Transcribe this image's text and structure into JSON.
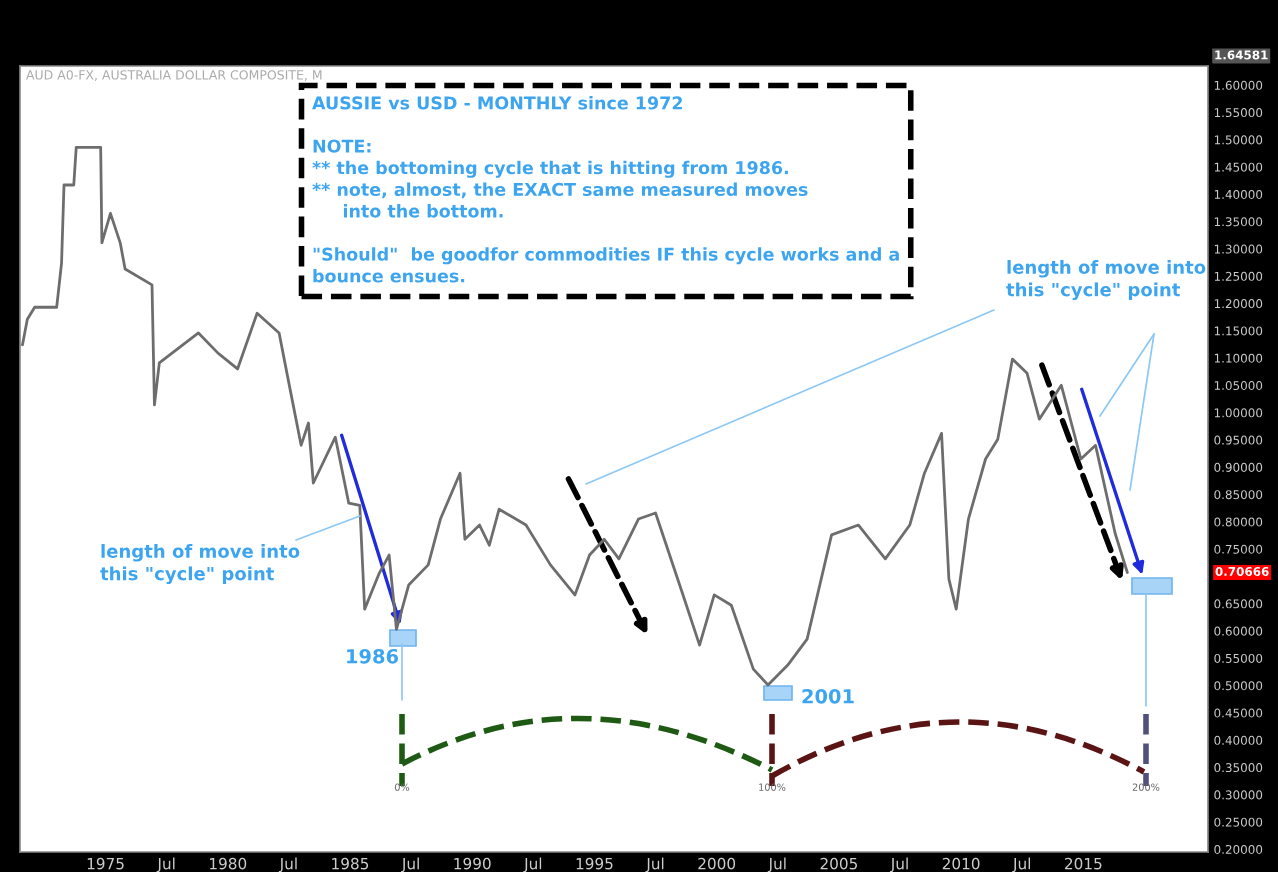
{
  "chart_data": {
    "type": "line",
    "title": "AUD A0-FX, AUSTRALIA DOLLAR COMPOSITE, M",
    "x": [
      1971.6,
      1971.8,
      1972.1,
      1973.0,
      1973.2,
      1973.3,
      1973.7,
      1973.8,
      1974.8,
      1974.85,
      1975.2,
      1975.6,
      1975.8,
      1976.9,
      1977.0,
      1977.2,
      1978.8,
      1979.6,
      1980.4,
      1981.2,
      1982.1,
      1982.5,
      1983.0,
      1983.3,
      1983.5,
      1984.4,
      1984.95,
      1985.4,
      1985.6,
      1986.2,
      1986.6,
      1986.9,
      1987.4,
      1988.2,
      1988.7,
      1989.5,
      1989.7,
      1990.3,
      1990.7,
      1991.1,
      1992.2,
      1993.2,
      1994.2,
      1994.8,
      1995.4,
      1996.0,
      1996.8,
      1997.5,
      1998.6,
      1999.3,
      1999.9,
      2000.6,
      2001.5,
      2002.1,
      2002.9,
      2003.7,
      2004.7,
      2005.8,
      2006.9,
      2007.9,
      2008.5,
      2009.2,
      2009.5,
      2009.8,
      2010.3,
      2011.0,
      2011.5,
      2012.1,
      2012.7,
      2013.2,
      2014.1,
      2014.9,
      2015.5,
      2016.3,
      2016.8
    ],
    "series": [
      {
        "color": "#6d6d6d",
        "values": [
          1.124,
          1.171,
          1.193,
          1.193,
          1.274,
          1.417,
          1.417,
          1.486,
          1.486,
          1.311,
          1.365,
          1.311,
          1.263,
          1.234,
          1.014,
          1.091,
          1.146,
          1.109,
          1.08,
          1.182,
          1.146,
          1.054,
          0.94,
          0.981,
          0.871,
          0.955,
          0.834,
          0.83,
          0.64,
          0.706,
          0.739,
          0.603,
          0.684,
          0.721,
          0.805,
          0.889,
          0.768,
          0.794,
          0.757,
          0.823,
          0.794,
          0.721,
          0.666,
          0.739,
          0.768,
          0.732,
          0.805,
          0.816,
          0.669,
          0.574,
          0.666,
          0.647,
          0.53,
          0.501,
          0.537,
          0.585,
          0.776,
          0.794,
          0.732,
          0.794,
          0.889,
          0.962,
          0.695,
          0.64,
          0.805,
          0.915,
          0.951,
          1.098,
          1.072,
          0.988,
          1.05,
          0.915,
          0.94,
          0.779,
          0.707
        ]
      }
    ],
    "xlim": [
      1971.5,
      2020.1
    ],
    "xticks": [
      1975,
      {
        "value": 1977.5,
        "label": "Jul"
      },
      1980,
      {
        "value": 1982.5,
        "label": "Jul"
      },
      1985,
      {
        "value": 1987.5,
        "label": "Jul"
      },
      1990,
      {
        "value": 1992.5,
        "label": "Jul"
      },
      1995,
      {
        "value": 1997.5,
        "label": "Jul"
      },
      2000,
      {
        "value": 2002.5,
        "label": "Jul"
      },
      2005,
      {
        "value": 2007.5,
        "label": "Jul"
      },
      2010,
      {
        "value": 2012.5,
        "label": "Jul"
      },
      2015
    ],
    "ylim": [
      0.195,
      1.635
    ],
    "yticks": [
      {
        "value": 0.2,
        "label": "0.20000"
      },
      {
        "value": 0.25,
        "label": "0.25000"
      },
      {
        "value": 0.3,
        "label": "0.30000"
      },
      {
        "value": 0.35,
        "label": "0.35000"
      },
      {
        "value": 0.4,
        "label": "0.40000"
      },
      {
        "value": 0.45,
        "label": "0.45000"
      },
      {
        "value": 0.5,
        "label": "0.50000"
      },
      {
        "value": 0.55,
        "label": "0.55000"
      },
      {
        "value": 0.6,
        "label": "0.60000"
      },
      {
        "value": 0.65,
        "label": "0.65000"
      },
      {
        "value": 0.75,
        "label": "0.75000"
      },
      {
        "value": 0.8,
        "label": "0.80000"
      },
      {
        "value": 0.85,
        "label": "0.85000"
      },
      {
        "value": 0.9,
        "label": "0.90000"
      },
      {
        "value": 0.95,
        "label": "0.95000"
      },
      {
        "value": 1.0,
        "label": "1.00000"
      },
      {
        "value": 1.05,
        "label": "1.05000"
      },
      {
        "value": 1.1,
        "label": "1.10000"
      },
      {
        "value": 1.15,
        "label": "1.15000"
      },
      {
        "value": 1.2,
        "label": "1.20000"
      },
      {
        "value": 1.25,
        "label": "1.25000"
      },
      {
        "value": 1.3,
        "label": "1.30000"
      },
      {
        "value": 1.35,
        "label": "1.35000"
      },
      {
        "value": 1.4,
        "label": "1.40000"
      },
      {
        "value": 1.45,
        "label": "1.45000"
      },
      {
        "value": 1.5,
        "label": "1.50000"
      },
      {
        "value": 1.55,
        "label": "1.55000"
      },
      {
        "value": 1.6,
        "label": "1.60000"
      }
    ],
    "annotations": [
      "AUSSIE vs USD - MONTHLY since 1972\n\nNOTE:\n** the bottoming cycle that is hitting from 1986.\n** note, almost, the EXACT same measured moves\n     into the bottom.\n\n\"Should\"  be goodfor commodities IF this cycle works and a\nbounce ensues.",
      "length of move into\nthis \"cycle\" point",
      "length of move into\nthis \"cycle\" point",
      "1986",
      "2001",
      "0%",
      "100%",
      "200%",
      "1.64581",
      "0.70666"
    ],
    "grid": false,
    "legend": false,
    "tick_labels": "xy"
  }
}
